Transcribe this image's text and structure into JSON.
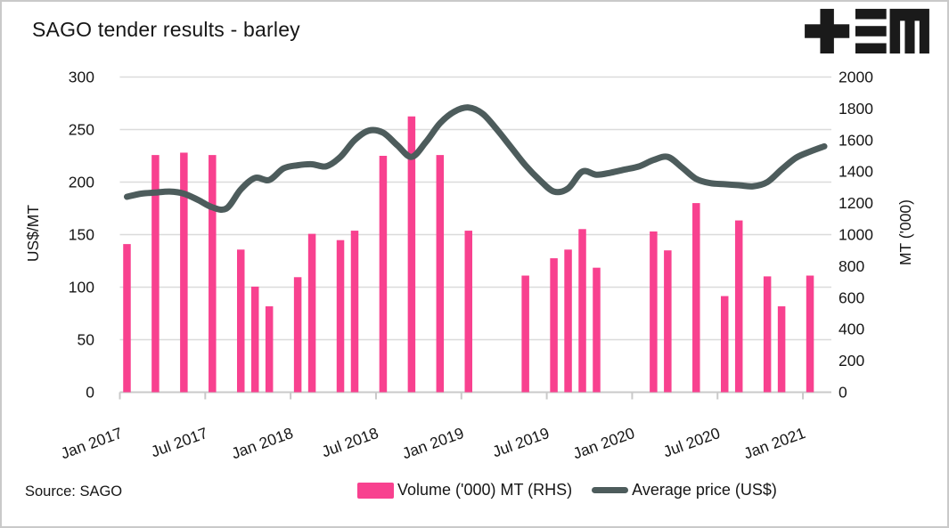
{
  "title": "SAGO tender results - barley",
  "source_note": "Source: SAGO",
  "logo": {
    "name": "tem-logo",
    "glyphs": "plus, triple-bar, M"
  },
  "colors": {
    "bar": "#F8418F",
    "line": "#4D5C5C",
    "grid": "#DBDBDB",
    "axis_line": "#C9C9C9",
    "text": "#161616"
  },
  "legend": {
    "items": [
      {
        "label": "Volume ('000) MT (RHS)",
        "swatch": "bar"
      },
      {
        "label": "Average price (US$)",
        "swatch": "line"
      }
    ]
  },
  "left_axis": {
    "title": "US$/MT",
    "ticks": [
      0,
      50,
      100,
      150,
      200,
      250,
      300
    ],
    "range": [
      0,
      300
    ]
  },
  "right_axis": {
    "title": "MT ('000)",
    "ticks": [
      0,
      200,
      400,
      600,
      800,
      1000,
      1200,
      1400,
      1600,
      1800,
      2000
    ],
    "range": [
      0,
      2000
    ]
  },
  "x_axis": {
    "tick_label_indices": [
      0,
      6,
      12,
      18,
      24,
      30,
      36,
      42,
      48
    ]
  },
  "chart_data": {
    "type": "combo",
    "months": [
      "Jan 2017",
      "Feb 2017",
      "Mar 2017",
      "Apr 2017",
      "May 2017",
      "Jun 2017",
      "Jul 2017",
      "Aug 2017",
      "Sep 2017",
      "Oct 2017",
      "Nov 2017",
      "Dec 2017",
      "Jan 2018",
      "Feb 2018",
      "Mar 2018",
      "Apr 2018",
      "May 2018",
      "Jun 2018",
      "Jul 2018",
      "Aug 2018",
      "Sep 2018",
      "Oct 2018",
      "Nov 2018",
      "Dec 2018",
      "Jan 2019",
      "Feb 2019",
      "Mar 2019",
      "Apr 2019",
      "May 2019",
      "Jun 2019",
      "Jul 2019",
      "Aug 2019",
      "Sep 2019",
      "Oct 2019",
      "Nov 2019",
      "Dec 2019",
      "Jan 2020",
      "Feb 2020",
      "Mar 2020",
      "Apr 2020",
      "May 2020",
      "Jun 2020",
      "Jul 2020",
      "Aug 2020",
      "Sep 2020",
      "Oct 2020",
      "Nov 2020",
      "Dec 2020",
      "Jan 2021",
      "Feb 2021"
    ],
    "series": [
      {
        "name": "Volume ('000) MT (RHS)",
        "type": "bar",
        "axis": "right",
        "values": [
          940,
          null,
          1505,
          null,
          1520,
          null,
          1505,
          null,
          905,
          670,
          545,
          null,
          730,
          1005,
          null,
          965,
          1025,
          null,
          1500,
          null,
          1750,
          null,
          1505,
          null,
          1025,
          null,
          null,
          null,
          740,
          null,
          850,
          905,
          1035,
          790,
          null,
          null,
          null,
          1020,
          900,
          null,
          1200,
          null,
          610,
          1090,
          null,
          735,
          545,
          null,
          740,
          null
        ]
      },
      {
        "name": "Average price (US$)",
        "type": "line",
        "axis": "left",
        "values": [
          186,
          189,
          190,
          191,
          189,
          183,
          176,
          175,
          193,
          204,
          202,
          213,
          216,
          217,
          215,
          224,
          240,
          249,
          247,
          235,
          224,
          238,
          256,
          267,
          271,
          265,
          250,
          233,
          216,
          202,
          191,
          194,
          210,
          207,
          209,
          212,
          215,
          221,
          224,
          214,
          203,
          199,
          198,
          197,
          196,
          200,
          212,
          223,
          229,
          234
        ]
      }
    ],
    "left_ylim": [
      0,
      300
    ],
    "right_ylim": [
      0,
      2000
    ],
    "grid": "horizontal"
  }
}
